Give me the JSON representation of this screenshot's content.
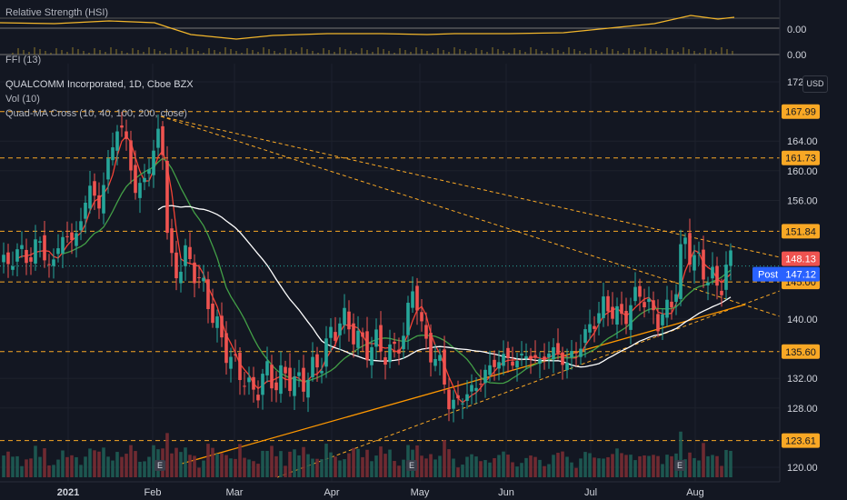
{
  "chart": {
    "symbol_line": "QUALCOMM Incorporated, 1D, Cboe BZX",
    "indicators": [
      "Vol (10)",
      "Quad-MA Cross (10, 40, 100, 200, close)"
    ],
    "currency_button": "USD",
    "pane_rsi": {
      "label": "Relative Strength (HSI)",
      "value": "0.00"
    },
    "pane_ffi": {
      "label": "FFI (13)",
      "value": "0.00"
    }
  },
  "chart_data": {
    "type": "candlestick",
    "title": "QUALCOMM Incorporated, 1D, Cboe BZX",
    "x_ticks": [
      "2021",
      "Feb",
      "Mar",
      "Apr",
      "May",
      "Jun",
      "Jul",
      "Aug"
    ],
    "y_ticks": [
      172.0,
      164.0,
      160.0,
      156.0,
      140.0,
      132.0,
      128.0,
      120.0
    ],
    "ylim": [
      118.5,
      173.5
    ],
    "price_levels": [
      167.99,
      161.73,
      151.84,
      145.0,
      135.6,
      123.61
    ],
    "last_price": 148.13,
    "post_market": {
      "label": "Post",
      "value": 147.12
    },
    "grid": true,
    "colors": {
      "up": "#26a69a",
      "down": "#ef5350",
      "level": "#f9a825",
      "background": "#131722",
      "ma10": "#f44336",
      "ma40": "#43a047",
      "ma100": "#ffffff",
      "ma200": "#ff9800"
    },
    "series_close": [
      {
        "x": 0,
        "y": 150.0
      },
      {
        "x": 10,
        "y": 146.0
      },
      {
        "x": 20,
        "y": 150.5
      },
      {
        "x": 30,
        "y": 147.0
      },
      {
        "x": 40,
        "y": 151.0
      },
      {
        "x": 50,
        "y": 148.0
      },
      {
        "x": 60,
        "y": 147.5
      },
      {
        "x": 70,
        "y": 152.0
      },
      {
        "x": 80,
        "y": 150.0
      },
      {
        "x": 90,
        "y": 154.0
      },
      {
        "x": 100,
        "y": 158.0
      },
      {
        "x": 110,
        "y": 155.0
      },
      {
        "x": 120,
        "y": 162.0
      },
      {
        "x": 130,
        "y": 166.0
      },
      {
        "x": 140,
        "y": 164.0
      },
      {
        "x": 150,
        "y": 156.0
      },
      {
        "x": 160,
        "y": 160.0
      },
      {
        "x": 170,
        "y": 162.0
      },
      {
        "x": 177,
        "y": 167.99
      },
      {
        "x": 185,
        "y": 149.0
      },
      {
        "x": 195,
        "y": 146.0
      },
      {
        "x": 205,
        "y": 149.0
      },
      {
        "x": 215,
        "y": 146.0
      },
      {
        "x": 225,
        "y": 144.0
      },
      {
        "x": 235,
        "y": 140.0
      },
      {
        "x": 245,
        "y": 137.0
      },
      {
        "x": 255,
        "y": 134.0
      },
      {
        "x": 265,
        "y": 133.0
      },
      {
        "x": 275,
        "y": 130.0
      },
      {
        "x": 285,
        "y": 131.0
      },
      {
        "x": 295,
        "y": 133.0
      },
      {
        "x": 305,
        "y": 131.0
      },
      {
        "x": 315,
        "y": 133.0
      },
      {
        "x": 325,
        "y": 131.0
      },
      {
        "x": 335,
        "y": 132.0
      },
      {
        "x": 345,
        "y": 133.0
      },
      {
        "x": 355,
        "y": 135.0
      },
      {
        "x": 365,
        "y": 138.0
      },
      {
        "x": 375,
        "y": 140.0
      },
      {
        "x": 385,
        "y": 139.0
      },
      {
        "x": 395,
        "y": 137.0
      },
      {
        "x": 405,
        "y": 136.0
      },
      {
        "x": 415,
        "y": 137.0
      },
      {
        "x": 425,
        "y": 135.0
      },
      {
        "x": 435,
        "y": 136.0
      },
      {
        "x": 445,
        "y": 138.0
      },
      {
        "x": 455,
        "y": 145.0
      },
      {
        "x": 465,
        "y": 138.0
      },
      {
        "x": 475,
        "y": 135.0
      },
      {
        "x": 485,
        "y": 134.0
      },
      {
        "x": 495,
        "y": 128.0
      },
      {
        "x": 505,
        "y": 129.0
      },
      {
        "x": 515,
        "y": 130.0
      },
      {
        "x": 525,
        "y": 131.0
      },
      {
        "x": 535,
        "y": 133.0
      },
      {
        "x": 545,
        "y": 134.0
      },
      {
        "x": 555,
        "y": 135.0
      },
      {
        "x": 565,
        "y": 134.0
      },
      {
        "x": 575,
        "y": 135.0
      },
      {
        "x": 585,
        "y": 135.0
      },
      {
        "x": 595,
        "y": 134.0
      },
      {
        "x": 605,
        "y": 136.0
      },
      {
        "x": 615,
        "y": 135.0
      },
      {
        "x": 625,
        "y": 134.0
      },
      {
        "x": 635,
        "y": 136.0
      },
      {
        "x": 645,
        "y": 138.0
      },
      {
        "x": 655,
        "y": 140.0
      },
      {
        "x": 665,
        "y": 142.0
      },
      {
        "x": 675,
        "y": 141.0
      },
      {
        "x": 685,
        "y": 140.0
      },
      {
        "x": 695,
        "y": 142.0
      },
      {
        "x": 705,
        "y": 144.0
      },
      {
        "x": 715,
        "y": 141.0
      },
      {
        "x": 725,
        "y": 140.0
      },
      {
        "x": 735,
        "y": 141.0
      },
      {
        "x": 745,
        "y": 145.0
      },
      {
        "x": 752,
        "y": 151.0
      },
      {
        "x": 760,
        "y": 149.0
      },
      {
        "x": 770,
        "y": 147.0
      },
      {
        "x": 780,
        "y": 146.0
      },
      {
        "x": 790,
        "y": 144.0
      },
      {
        "x": 800,
        "y": 147.0
      },
      {
        "x": 808,
        "y": 148.13
      }
    ]
  }
}
